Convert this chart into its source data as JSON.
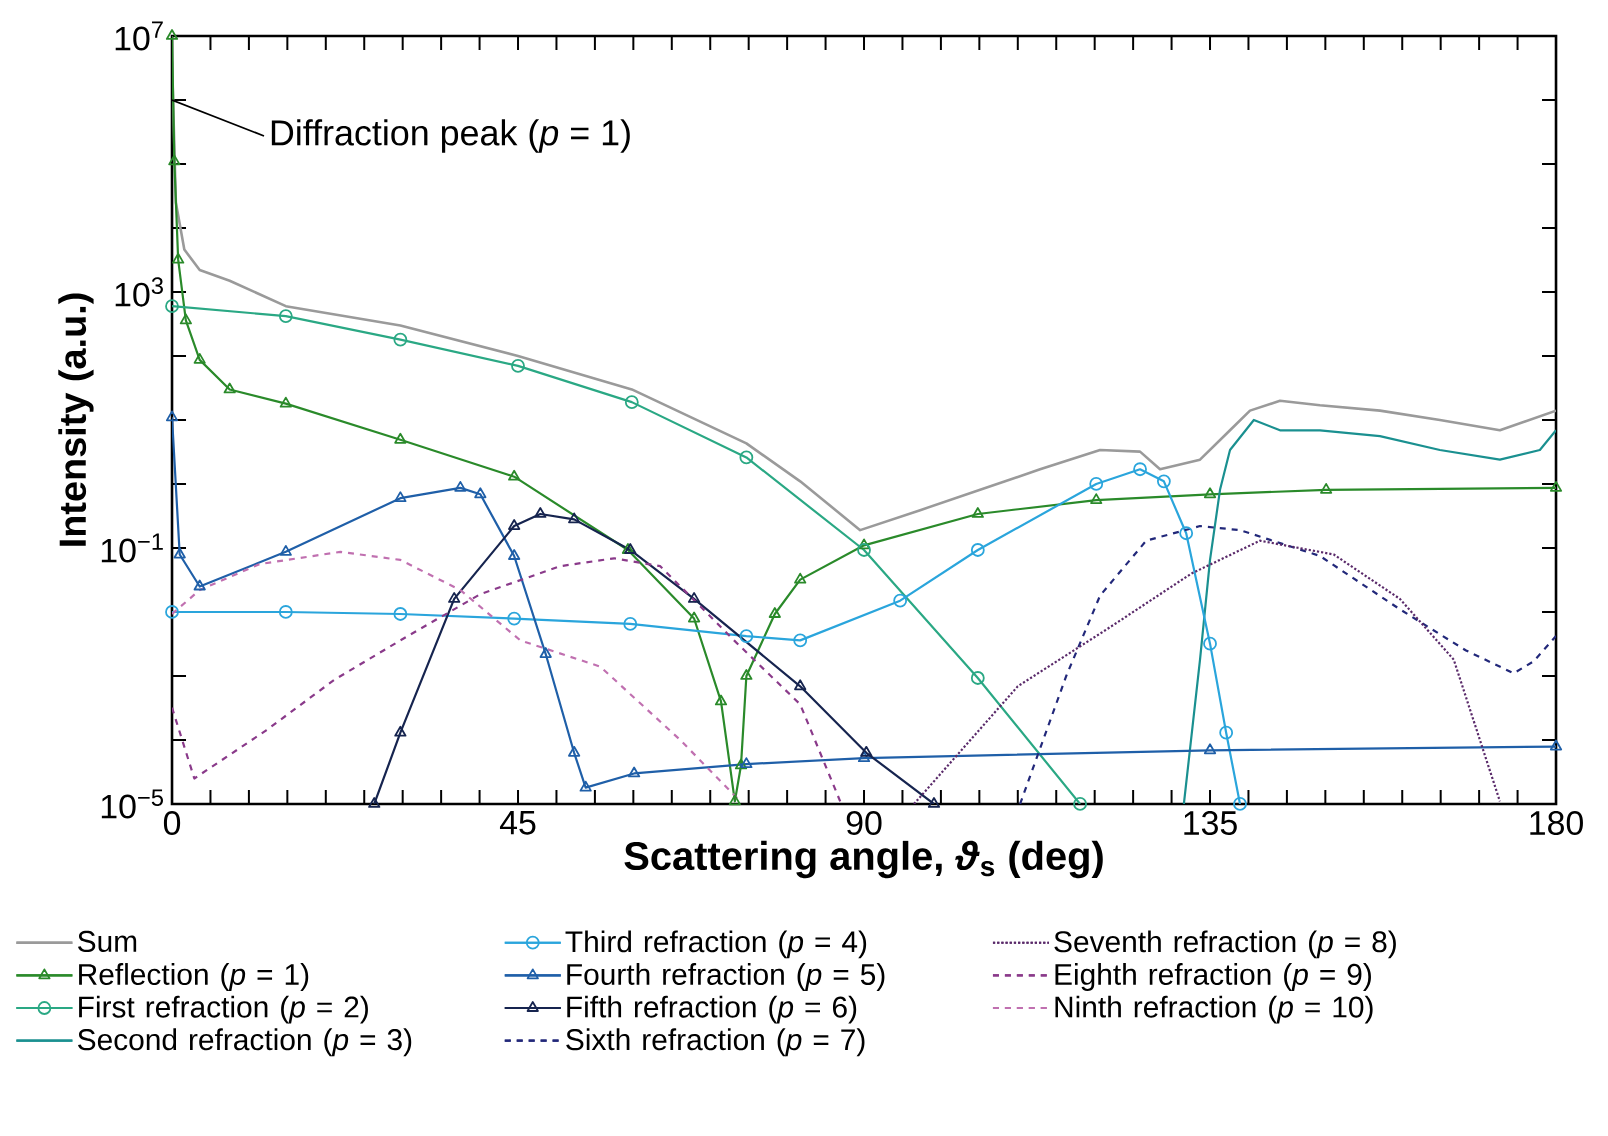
{
  "chart_data": {
    "type": "line",
    "xlabel": "Scattering angle, *ϑ*$_{s}$ (deg)",
    "ylabel": "Intensity (a.u.)",
    "xlim": [
      0,
      180
    ],
    "xticks": [
      0,
      {
        "value": 5,
        "label": null
      },
      {
        "value": 10,
        "label": null
      },
      {
        "value": 15,
        "label": null
      },
      {
        "value": 20,
        "label": null
      },
      {
        "value": 25,
        "label": null
      },
      {
        "value": 30,
        "label": null
      },
      {
        "value": 35,
        "label": null
      },
      {
        "value": 40,
        "label": null
      },
      45,
      {
        "value": 50,
        "label": null
      },
      {
        "value": 55,
        "label": null
      },
      {
        "value": 60,
        "label": null
      },
      {
        "value": 65,
        "label": null
      },
      {
        "value": 70,
        "label": null
      },
      {
        "value": 75,
        "label": null
      },
      {
        "value": 80,
        "label": null
      },
      {
        "value": 85,
        "label": null
      },
      90,
      {
        "value": 95,
        "label": null
      },
      {
        "value": 100,
        "label": null
      },
      {
        "value": 105,
        "label": null
      },
      {
        "value": 110,
        "label": null
      },
      {
        "value": 115,
        "label": null
      },
      {
        "value": 120,
        "label": null
      },
      {
        "value": 125,
        "label": null
      },
      {
        "value": 130,
        "label": null
      },
      135,
      {
        "value": 140,
        "label": null
      },
      {
        "value": 145,
        "label": null
      },
      {
        "value": 150,
        "label": null
      },
      {
        "value": 155,
        "label": null
      },
      {
        "value": 160,
        "label": null
      },
      {
        "value": 165,
        "label": null
      },
      {
        "value": 170,
        "label": null
      },
      {
        "value": 175,
        "label": null
      },
      180
    ],
    "ylim": [
      1e-05,
      10000000.0
    ],
    "yticks": [
      {
        "value": 1e-05,
        "label": "10$^{−5}$"
      },
      {
        "value": 0.0001,
        "label": null
      },
      {
        "value": 0.001,
        "label": null
      },
      {
        "value": 0.01,
        "label": null
      },
      {
        "value": 0.1,
        "label": "10$^{−1}$"
      },
      {
        "value": 1,
        "label": null
      },
      {
        "value": 10,
        "label": null
      },
      {
        "value": 100,
        "label": null
      },
      {
        "value": 1000,
        "label": "10$^{3}$"
      },
      {
        "value": 10000.0,
        "label": null
      },
      {
        "value": 100000.0,
        "label": null
      },
      {
        "value": 1000000.0,
        "label": null
      },
      {
        "value": 10000000.0,
        "label": "10$^{7}$"
      }
    ],
    "log": "y",
    "grid": false,
    "legend": "bottom",
    "annotations": [
      {
        "text": "Diffraction peak (*p* = 1)",
        "x": 0,
        "y": 1000000
      }
    ],
    "series": [
      {
        "name": "Sum",
        "color": "#9a9a9a",
        "marker": "none",
        "line_style": "solid",
        "x": [
          0,
          0.5,
          1.6,
          3.6,
          7.5,
          14.8,
          29.7,
          45,
          59.8,
          74.7,
          81.7,
          89.5,
          97.3,
          105.1,
          112.9,
          120.7,
          125.9,
          128.5,
          133.7,
          137.6,
          140.2,
          144.1,
          149.3,
          157.1,
          164.9,
          172.7,
          180
        ],
        "values": [
          4000000,
          25000,
          4600,
          2200,
          1500,
          600,
          300,
          100,
          30,
          4.3,
          1.1,
          0.19,
          0.39,
          0.81,
          1.7,
          3.4,
          3.2,
          1.7,
          2.4,
          6.9,
          14,
          20,
          17,
          14,
          10,
          6.9,
          14
        ]
      },
      {
        "name": "Reflection (*p* = 1)",
        "color": "#2a8a2a",
        "marker": "triangle",
        "line_style": "solid",
        "x": [
          0,
          0.3,
          0.8,
          1.8,
          3.6,
          7.5,
          14.8,
          29.7,
          44.5,
          59.3,
          67.9,
          71.4,
          73.2,
          74.0,
          74.7,
          78.4,
          81.7,
          90,
          104.8,
          120.2,
          135,
          150.1,
          180
        ],
        "values": [
          10000000,
          110000,
          3200,
          360,
          87,
          30,
          18,
          4.9,
          1.3,
          0.093,
          0.0079,
          0.0004,
          1.1e-05,
          4e-05,
          0.001,
          0.0093,
          0.032,
          0.11,
          0.34,
          0.56,
          0.69,
          0.81,
          0.87
        ]
      },
      {
        "name": "First refraction (*p* = 2)",
        "color": "#2aa884",
        "marker": "circle",
        "line_style": "solid",
        "x": [
          0,
          14.8,
          29.7,
          45,
          59.8,
          74.7,
          90,
          104.8,
          118.1
        ],
        "values": [
          600,
          420,
          180,
          70,
          19,
          2.6,
          0.093,
          0.00093,
          1e-05
        ]
      },
      {
        "name": "Second refraction (*p* = 3)",
        "color": "#1a9090",
        "marker": "none",
        "line_style": "solid",
        "x": [
          131.6,
          133.7,
          135.0,
          136.3,
          137.6,
          140.7,
          144.1,
          149.3,
          157.1,
          164.9,
          172.7,
          177.9,
          180
        ],
        "values": [
          1e-05,
          0.0018,
          0.065,
          0.81,
          3.4,
          10,
          6.9,
          6.9,
          5.6,
          3.4,
          2.4,
          3.4,
          6.9
        ]
      },
      {
        "name": "Third refraction (*p* = 4)",
        "color": "#2aa5dc",
        "marker": "circle",
        "line_style": "solid",
        "x": [
          0,
          14.8,
          29.7,
          44.5,
          59.6,
          74.7,
          81.7,
          94.7,
          104.8,
          120.2,
          125.9,
          129.0,
          131.9,
          135.0,
          137.1,
          138.9
        ],
        "values": [
          0.01,
          0.01,
          0.0093,
          0.0079,
          0.0065,
          0.0042,
          0.0036,
          0.015,
          0.093,
          1.0,
          1.7,
          1.1,
          0.17,
          0.0032,
          0.00013,
          1e-05
        ]
      },
      {
        "name": "Fourth refraction (*p* = 5)",
        "color": "#1f5fa8",
        "marker": "triangle",
        "line_style": "solid",
        "x": [
          0,
          1.0,
          3.6,
          14.8,
          29.7,
          37.5,
          40.1,
          44.5,
          48.6,
          52.3,
          53.8,
          60.1,
          74.7,
          90,
          135,
          180
        ],
        "values": [
          11,
          0.079,
          0.025,
          0.087,
          0.6,
          0.87,
          0.69,
          0.075,
          0.0022,
          6.3e-05,
          1.8e-05,
          3e-05,
          4.2e-05,
          5.2e-05,
          6.9e-05,
          7.9e-05
        ]
      },
      {
        "name": "Fifth refraction (*p* = 6)",
        "color": "#16244f",
        "marker": "triangle",
        "line_style": "solid",
        "x": [
          26.3,
          29.7,
          36.7,
          44.5,
          47.9,
          52.3,
          59.6,
          67.9,
          81.7,
          90.3,
          99.1
        ],
        "values": [
          1e-05,
          0.00013,
          0.016,
          0.22,
          0.34,
          0.28,
          0.093,
          0.016,
          0.00069,
          6.3e-05,
          1e-05
        ]
      },
      {
        "name": "Sixth refraction (*p* = 7)",
        "color": "#22287a",
        "marker": "none",
        "line_style": "dashed",
        "x": [
          110.3,
          116.3,
          120.7,
          126.7,
          133.7,
          138.9,
          149.3,
          159.7,
          168.3,
          174.5,
          177.1,
          180
        ],
        "values": [
          1e-05,
          0.001,
          0.018,
          0.13,
          0.22,
          0.19,
          0.075,
          0.011,
          0.0025,
          0.0011,
          0.0017,
          0.0042
        ]
      },
      {
        "name": "Seventh refraction (*p* = 8)",
        "color": "#5a2a6a",
        "marker": "none",
        "line_style": "dotted",
        "x": [
          96.5,
          110.0,
          122.2,
          132.6,
          141.5,
          151.1,
          159.7,
          166.7,
          172.7
        ],
        "values": [
          1e-05,
          0.00069,
          0.006,
          0.04,
          0.13,
          0.079,
          0.016,
          0.0018,
          1.1e-05
        ]
      },
      {
        "name": "Eighth refraction (*p* = 9)",
        "color": "#8a3a8a",
        "marker": "none",
        "line_style": "dashed",
        "x": [
          0,
          2.9,
          12.2,
          21.1,
          29.7,
          40.1,
          50.5,
          57.5,
          63.5,
          73.1,
          81.7,
          86.9
        ],
        "values": [
          0.00032,
          2.5e-05,
          0.00014,
          0.00087,
          0.0036,
          0.019,
          0.052,
          0.069,
          0.052,
          0.0036,
          0.00036,
          1.1e-05
        ]
      },
      {
        "name": "Ninth refraction (*p* = 10)",
        "color": "#c070b0",
        "marker": "none",
        "line_style": "dashed",
        "x": [
          0,
          3.6,
          11.4,
          21.9,
          29.7,
          37.5,
          45.3,
          55.7,
          66.1,
          73.9
        ],
        "values": [
          0.0093,
          0.022,
          0.056,
          0.087,
          0.065,
          0.022,
          0.0036,
          0.0014,
          0.0001,
          1.1e-05
        ]
      }
    ]
  }
}
